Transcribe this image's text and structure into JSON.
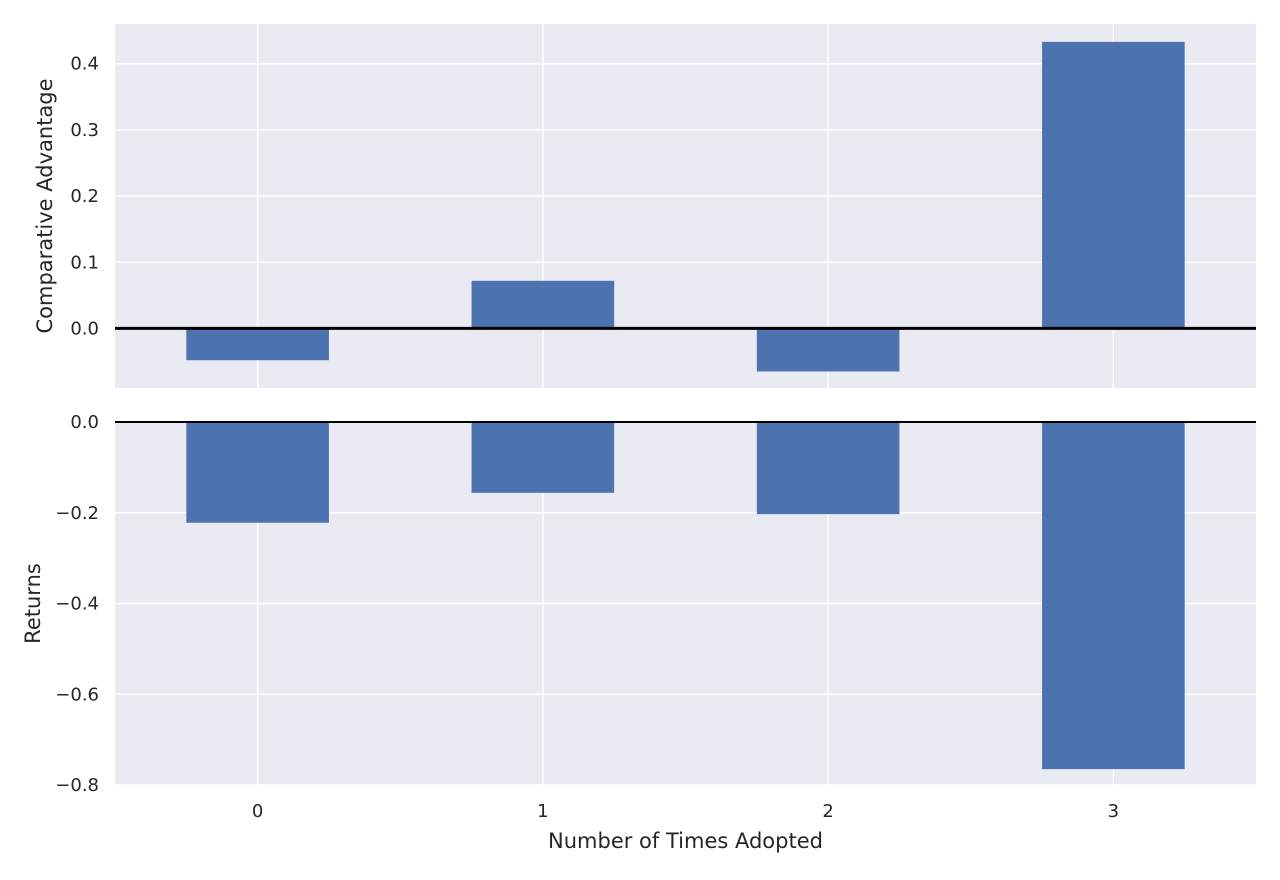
{
  "chart_data": [
    {
      "type": "bar",
      "categories": [
        "0",
        "1",
        "2",
        "3"
      ],
      "values": [
        -0.048,
        0.072,
        -0.065,
        0.433
      ],
      "title": "",
      "xlabel": "",
      "ylabel": "Comparative Advantage",
      "ylim": [
        -0.09,
        0.46
      ],
      "yticks": [
        0.0,
        0.1,
        0.2,
        0.3,
        0.4
      ],
      "ytick_labels": [
        "0.0",
        "0.1",
        "0.2",
        "0.3",
        "0.4"
      ],
      "zero_line": true,
      "grid": true,
      "colors": {
        "bar": "#4c72b0",
        "background": "#eaeaf2",
        "grid": "#ffffff",
        "zero_line": "#000000"
      }
    },
    {
      "type": "bar",
      "categories": [
        "0",
        "1",
        "2",
        "3"
      ],
      "values": [
        -0.222,
        -0.156,
        -0.203,
        -0.765
      ],
      "title": "",
      "xlabel": "Number of Times Adopted",
      "ylabel": "Returns",
      "ylim": [
        -0.8,
        0.0
      ],
      "yticks": [
        0.0,
        -0.2,
        -0.4,
        -0.6,
        -0.8
      ],
      "ytick_labels": [
        "0.0",
        "−0.2",
        "−0.4",
        "−0.6",
        "−0.8"
      ],
      "zero_line": true,
      "grid": true,
      "colors": {
        "bar": "#4c72b0",
        "background": "#eaeaf2",
        "grid": "#ffffff",
        "zero_line": "#000000"
      }
    }
  ]
}
